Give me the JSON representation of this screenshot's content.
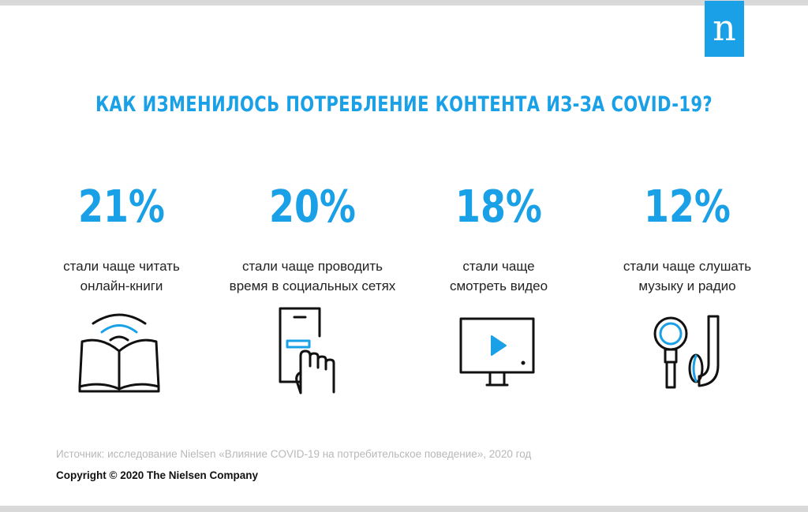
{
  "logo": {
    "letter": "n"
  },
  "title": "КАК ИЗМЕНИЛОСЬ ПОТРЕБЛЕНИЕ КОНТЕНТА ИЗ-ЗА COVID-19?",
  "stats": [
    {
      "value": "21%",
      "line1": "стали чаще читать",
      "line2": "онлайн-книги",
      "icon": "open-book-wifi-icon"
    },
    {
      "value": "20%",
      "line1": "стали чаще проводить",
      "line2": "время в социальных сетях",
      "icon": "smartphone-tap-icon"
    },
    {
      "value": "18%",
      "line1": "стали чаще",
      "line2": "смотреть видео",
      "icon": "monitor-play-icon"
    },
    {
      "value": "12%",
      "line1": "стали чаще слушать",
      "line2": "музыку и радио",
      "icon": "earbuds-icon"
    }
  ],
  "source": "Источник: исследование Nielsen «Влияние COVID-19 на потребительское поведение», 2020 год",
  "copyright": "Copyright © 2020 The Nielsen Company",
  "colors": {
    "accent": "#1aa0e6",
    "text": "#222222",
    "muted": "#b8b8b8",
    "bar": "#d9d9d9"
  }
}
